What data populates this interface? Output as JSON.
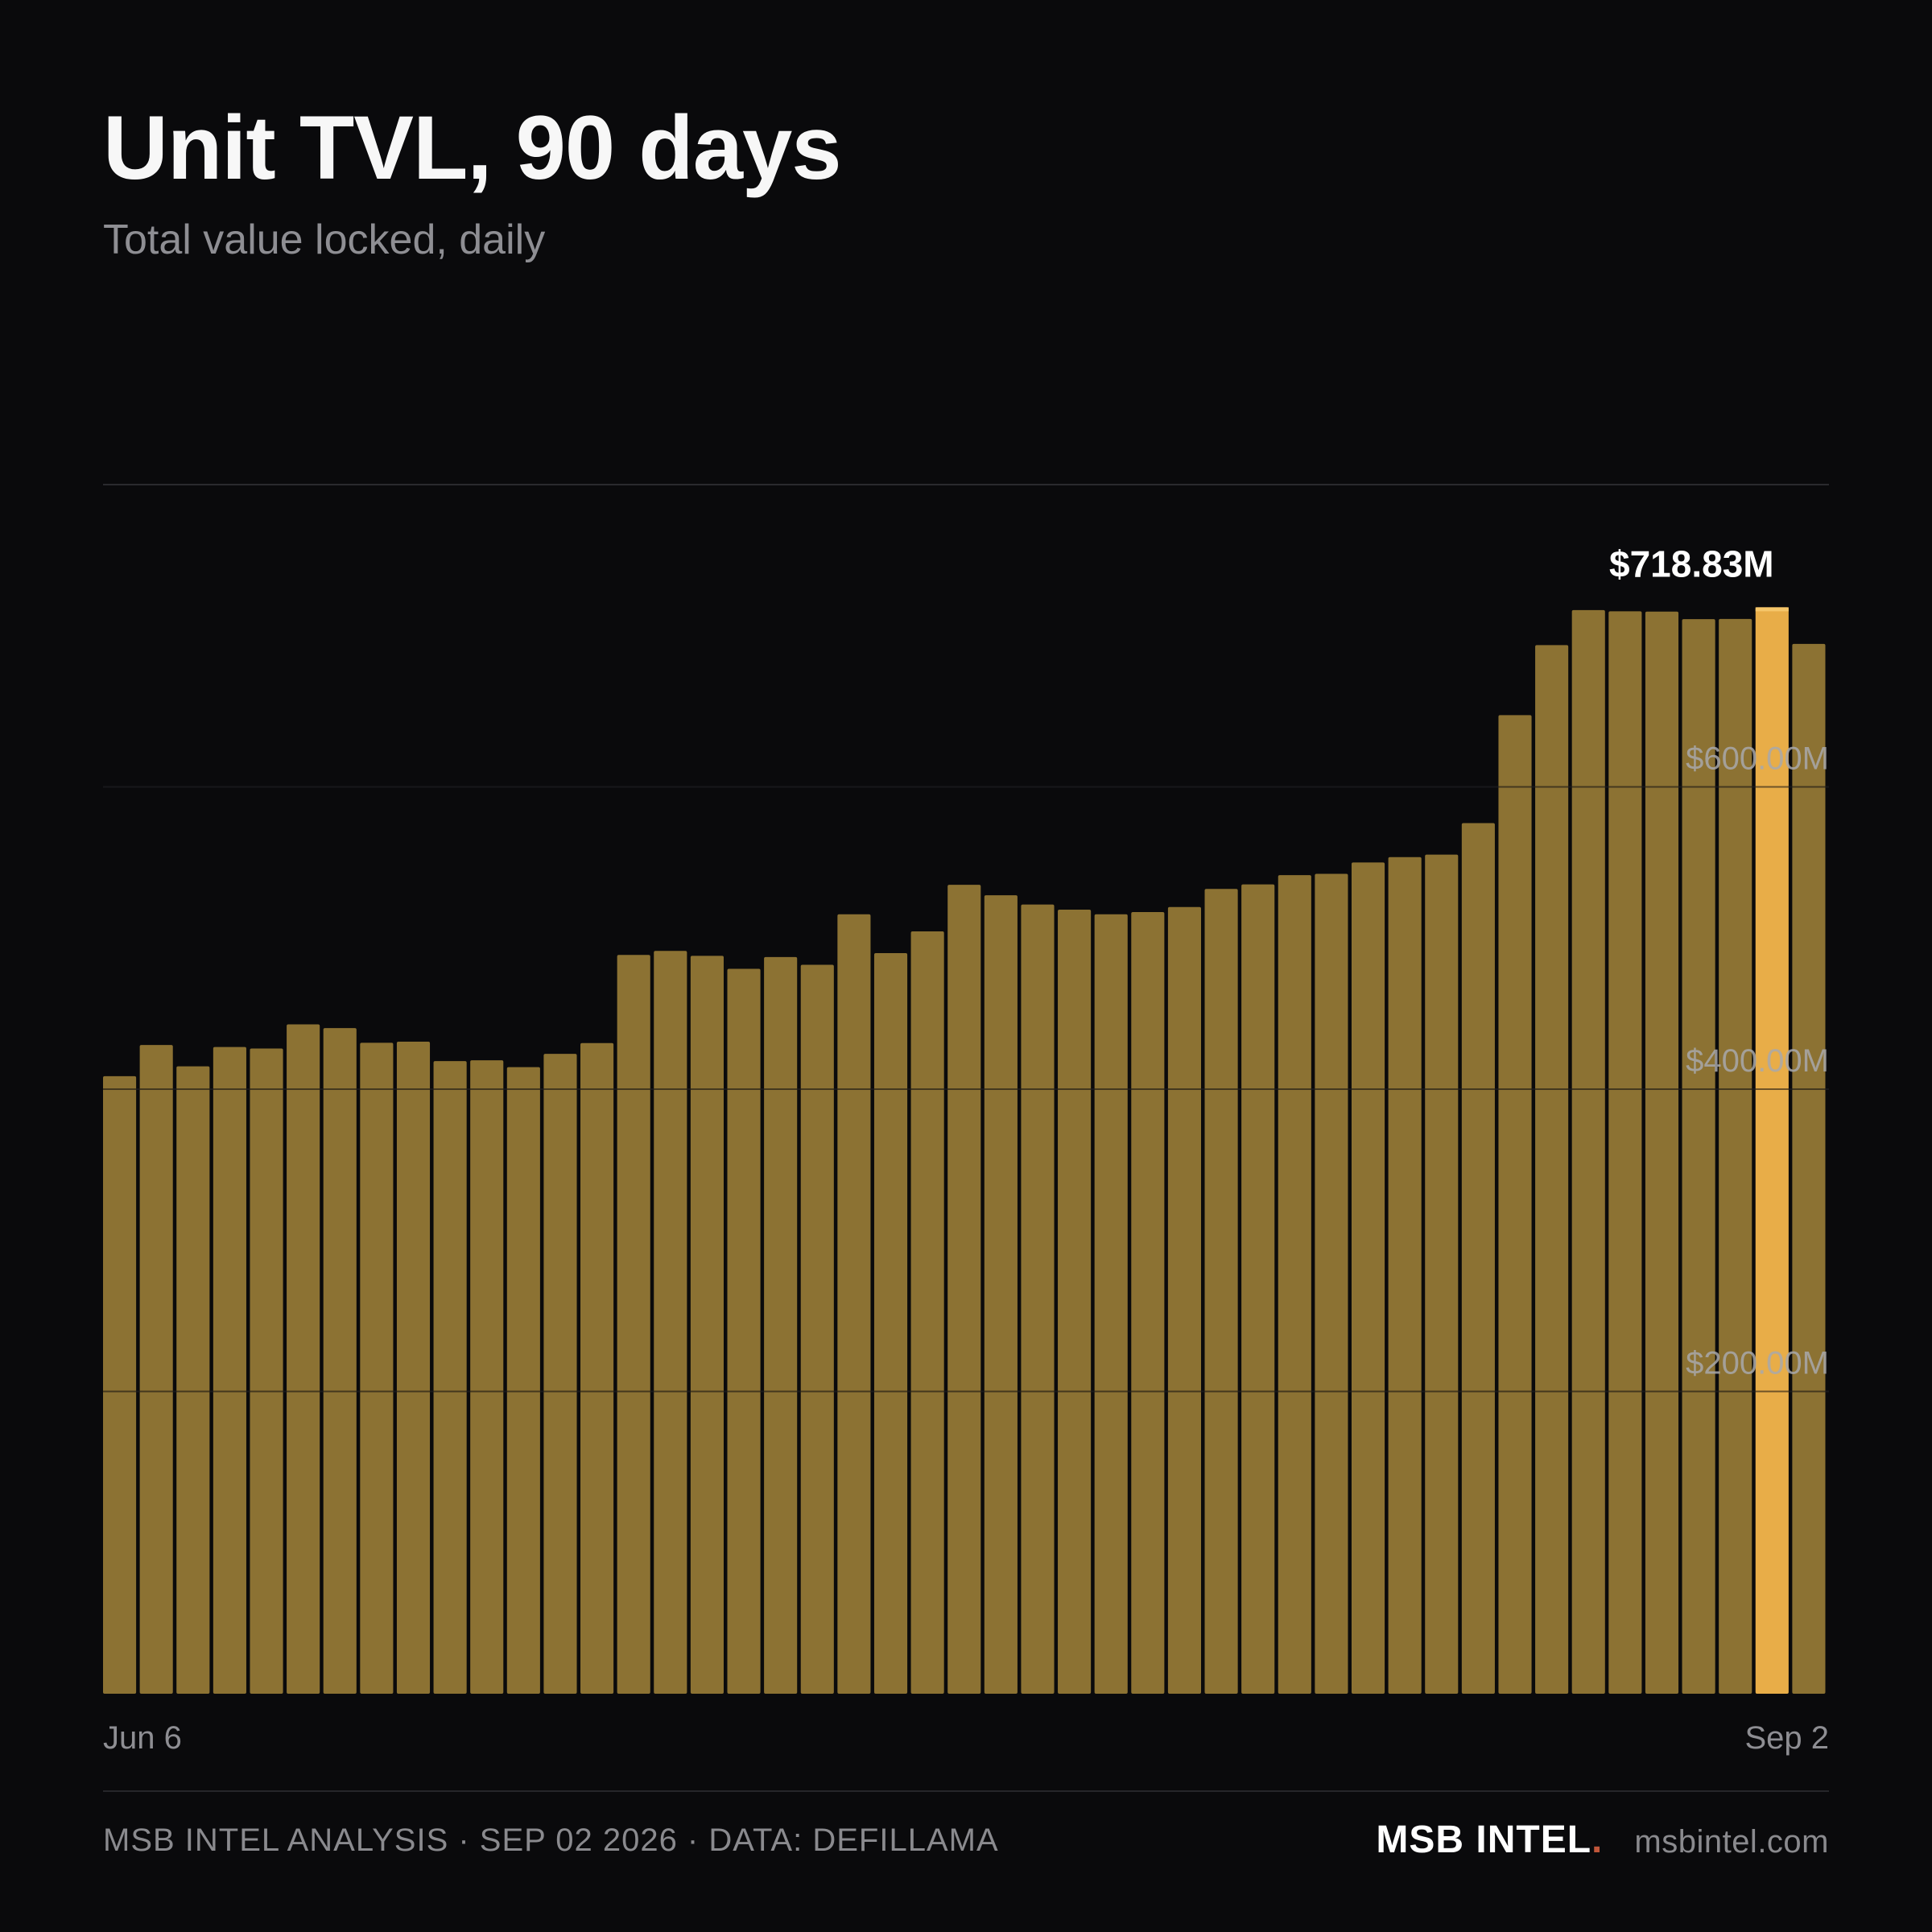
{
  "header": {
    "title": "Unit TVL, 90 days",
    "subtitle": "Total value locked, daily"
  },
  "chart_data": {
    "type": "bar",
    "title": "Unit TVL, 90 days",
    "subtitle": "Total value locked, daily",
    "x_start_label": "Jun 6",
    "x_end_label": "Sep 2",
    "ylim": [
      0,
      800
    ],
    "y_unit": "$M",
    "y_ticks": [
      200,
      400,
      600
    ],
    "y_tick_labels": [
      "$200.00M",
      "$400.00M",
      "$600.00M"
    ],
    "grid": true,
    "highlight_index": 45,
    "highlight_label": "$718.83M",
    "values": [
      408.6,
      429.2,
      415.1,
      427.9,
      426.9,
      442.9,
      440.4,
      430.7,
      431.4,
      418.6,
      419.1,
      414.6,
      423.4,
      430.5,
      488.8,
      491.5,
      488.2,
      479.6,
      487.4,
      482.3,
      515.7,
      490.0,
      504.4,
      535.2,
      528.3,
      522.2,
      518.8,
      515.7,
      517.2,
      520.5,
      532.5,
      535.5,
      541.6,
      542.5,
      550.0,
      553.5,
      555.2,
      576.0,
      647.5,
      693.8,
      717.0,
      716.2,
      716.0,
      711.0,
      711.1,
      718.83,
      694.6
    ],
    "colors": {
      "bar": "#8c7233",
      "highlight": "#e8ad48",
      "highlight_cap": "#f5c66a"
    }
  },
  "footer": {
    "left": "MSB INTEL ANALYSIS · SEP 02 2026 · DATA: DEFILLAMA",
    "brand": "MSB INTEL",
    "brand_dot": ".",
    "site": "msbintel.com"
  }
}
